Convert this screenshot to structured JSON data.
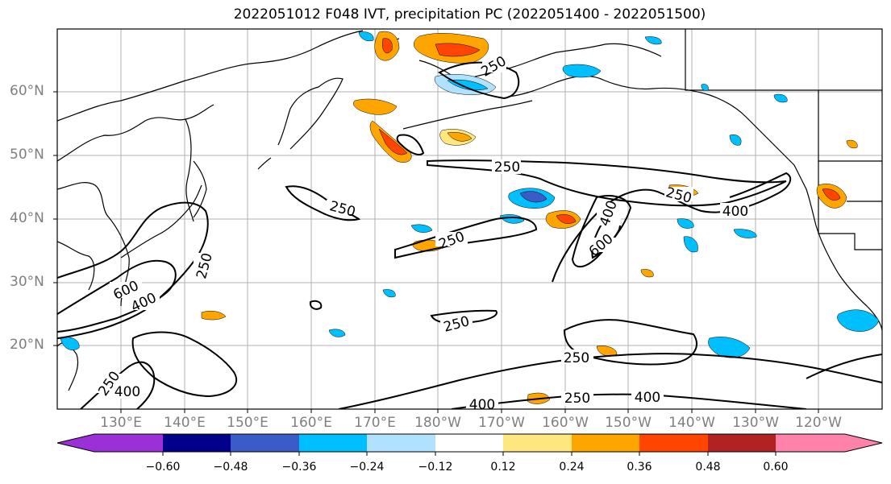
{
  "title": "2022051012 F048 IVT, precipitation PC (2022051400 - 2022051500)",
  "axes": {
    "lon_labels": [
      "130°E",
      "140°E",
      "150°E",
      "160°E",
      "170°E",
      "180°W",
      "170°W",
      "160°W",
      "150°W",
      "140°W",
      "130°W",
      "120°W"
    ],
    "lat_labels": [
      "60°N",
      "50°N",
      "40°N",
      "30°N",
      "20°N"
    ]
  },
  "contour_labels": [
    {
      "text": "250",
      "id": "alaska"
    },
    {
      "text": "250",
      "id": "aleutian"
    },
    {
      "text": "250",
      "id": "ne-pacific"
    },
    {
      "text": "400",
      "id": "ne-pacific-400"
    },
    {
      "text": "400",
      "id": "central-400"
    },
    {
      "text": "600",
      "id": "central-600"
    },
    {
      "text": "250",
      "id": "nw-pacific"
    },
    {
      "text": "250",
      "id": "central"
    },
    {
      "text": "250",
      "id": "japan"
    },
    {
      "text": "600",
      "id": "japan-600"
    },
    {
      "text": "400",
      "id": "japan-400"
    },
    {
      "text": "250",
      "id": "subtropic"
    },
    {
      "text": "250",
      "id": "hawaii"
    },
    {
      "text": "250",
      "id": "south-east"
    },
    {
      "text": "400",
      "id": "south-east-400"
    },
    {
      "text": "400",
      "id": "south-mid"
    },
    {
      "text": "250",
      "id": "sw"
    },
    {
      "text": "400",
      "id": "sw-400"
    }
  ],
  "colorbar": {
    "colors": [
      "#9b30d9",
      "#00008b",
      "#3a5bc8",
      "#00bfff",
      "#b0e2ff",
      "#ffffff",
      "#ffe77f",
      "#ffa500",
      "#ff4500",
      "#b22222",
      "#ff82ab"
    ],
    "ticks": [
      "−0.60",
      "−0.48",
      "−0.36",
      "−0.24",
      "−0.12",
      "0.12",
      "0.24",
      "0.36",
      "0.48",
      "0.60"
    ]
  }
}
